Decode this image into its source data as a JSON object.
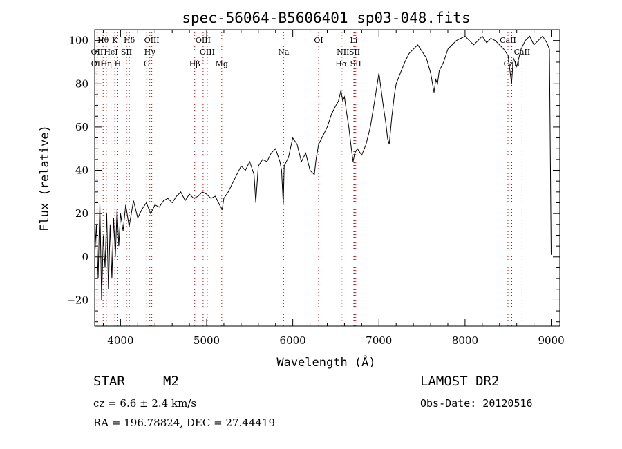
{
  "chart_data": {
    "type": "line",
    "title": "spec-56064-B5606401_sp03-048.fits",
    "xlabel": "Wavelength (Å)",
    "ylabel": "Flux (relative)",
    "xlim": [
      3700,
      9100
    ],
    "ylim": [
      -32,
      105
    ],
    "grid": false,
    "x_ticks": [
      4000,
      5000,
      6000,
      7000,
      8000,
      9000
    ],
    "y_ticks": [
      -20,
      0,
      20,
      40,
      60,
      80,
      100
    ],
    "series": [
      {
        "x": [
          3700,
          3720,
          3740,
          3760,
          3780,
          3800,
          3820,
          3840,
          3860,
          3880,
          3900,
          3920,
          3940,
          3960,
          3980,
          4000,
          4030,
          4060,
          4100,
          4150,
          4200,
          4250,
          4300,
          4350,
          4400,
          4450,
          4500,
          4550,
          4600,
          4650,
          4700,
          4750,
          4800,
          4850,
          4900,
          4950,
          5000,
          5050,
          5100,
          5150,
          5180,
          5200,
          5250,
          5300,
          5350,
          5400,
          5450,
          5500,
          5550,
          5570,
          5600,
          5650,
          5700,
          5750,
          5800,
          5850,
          5870,
          5890,
          5900,
          5950,
          6000,
          6050,
          6100,
          6150,
          6200,
          6250,
          6270,
          6300,
          6350,
          6400,
          6450,
          6500,
          6530,
          6560,
          6580,
          6600,
          6620,
          6650,
          6680,
          6700,
          6720,
          6750,
          6800,
          6850,
          6900,
          6950,
          7000,
          7050,
          7080,
          7100,
          7120,
          7150,
          7180,
          7200,
          7250,
          7300,
          7350,
          7400,
          7450,
          7500,
          7550,
          7600,
          7640,
          7660,
          7680,
          7700,
          7750,
          7800,
          7850,
          7900,
          7950,
          8000,
          8050,
          8100,
          8150,
          8200,
          8250,
          8300,
          8350,
          8400,
          8450,
          8500,
          8540,
          8560,
          8600,
          8650,
          8700,
          8750,
          8800,
          8850,
          8900,
          8950,
          8980,
          9000
        ],
        "values": [
          0,
          15,
          -10,
          25,
          -20,
          10,
          -5,
          20,
          -15,
          15,
          -10,
          18,
          0,
          22,
          5,
          20,
          12,
          24,
          14,
          26,
          18,
          22,
          25,
          20,
          24,
          23,
          26,
          27,
          25,
          28,
          30,
          26,
          29,
          27,
          28,
          30,
          29,
          27,
          28,
          24,
          22,
          27,
          30,
          34,
          38,
          42,
          40,
          44,
          38,
          25,
          42,
          45,
          44,
          48,
          50,
          44,
          40,
          24,
          42,
          46,
          55,
          52,
          44,
          48,
          40,
          38,
          45,
          52,
          56,
          60,
          66,
          70,
          72,
          77,
          72,
          74,
          68,
          60,
          50,
          44,
          48,
          50,
          47,
          52,
          60,
          72,
          85,
          70,
          62,
          55,
          52,
          65,
          75,
          80,
          85,
          90,
          94,
          96,
          98,
          95,
          92,
          85,
          76,
          82,
          80,
          86,
          90,
          96,
          98,
          100,
          101,
          102,
          100,
          98,
          100,
          102,
          99,
          101,
          100,
          98,
          96,
          93,
          80,
          92,
          88,
          96,
          100,
          102,
          98,
          100,
          102,
          99,
          96,
          1
        ]
      }
    ],
    "lines": [
      {
        "label": "Hθ",
        "x": 3798,
        "row": 0
      },
      {
        "label": "K",
        "x": 3934,
        "row": 0
      },
      {
        "label": "Hδ",
        "x": 4102,
        "row": 0
      },
      {
        "label": "OIII",
        "x": 4363,
        "row": 0
      },
      {
        "label": "OIII",
        "x": 4959,
        "row": 0
      },
      {
        "label": "OI",
        "x": 6300,
        "row": 0
      },
      {
        "label": "Li",
        "x": 6708,
        "row": 0
      },
      {
        "label": "CaII",
        "x": 8498,
        "row": 0
      },
      {
        "label": "OII",
        "x": 3727,
        "row": 1
      },
      {
        "label": "HeI",
        "x": 3889,
        "row": 1
      },
      {
        "label": "SII",
        "x": 4069,
        "row": 1
      },
      {
        "label": "Hγ",
        "x": 4340,
        "row": 1
      },
      {
        "label": "OIII",
        "x": 5007,
        "row": 1
      },
      {
        "label": "Na",
        "x": 5893,
        "row": 1
      },
      {
        "label": "NII",
        "x": 6583,
        "row": 1
      },
      {
        "label": "SII",
        "x": 6717,
        "row": 1
      },
      {
        "label": "CaII",
        "x": 8662,
        "row": 1
      },
      {
        "label": "OII",
        "x": 3729,
        "row": 2
      },
      {
        "label": "Hη",
        "x": 3835,
        "row": 2
      },
      {
        "label": "H",
        "x": 3968,
        "row": 2
      },
      {
        "label": "G",
        "x": 4304,
        "row": 2
      },
      {
        "label": "Hβ",
        "x": 4861,
        "row": 2
      },
      {
        "label": "Mg",
        "x": 5175,
        "row": 2
      },
      {
        "label": "Hα",
        "x": 6563,
        "row": 2
      },
      {
        "label": "SII",
        "x": 6731,
        "row": 2
      },
      {
        "label": "CaII",
        "x": 8542,
        "row": 2
      }
    ]
  },
  "info": {
    "class": "STAR",
    "subclass": "M2",
    "survey": "LAMOST DR2",
    "cz": "cz = 6.6 ± 2.4 km/s",
    "obs_date": "Obs-Date: 20120516",
    "coords": "RA = 196.78824, DEC =  27.44419"
  },
  "colors": {
    "line": "#000000",
    "marker": "#cc0000"
  }
}
